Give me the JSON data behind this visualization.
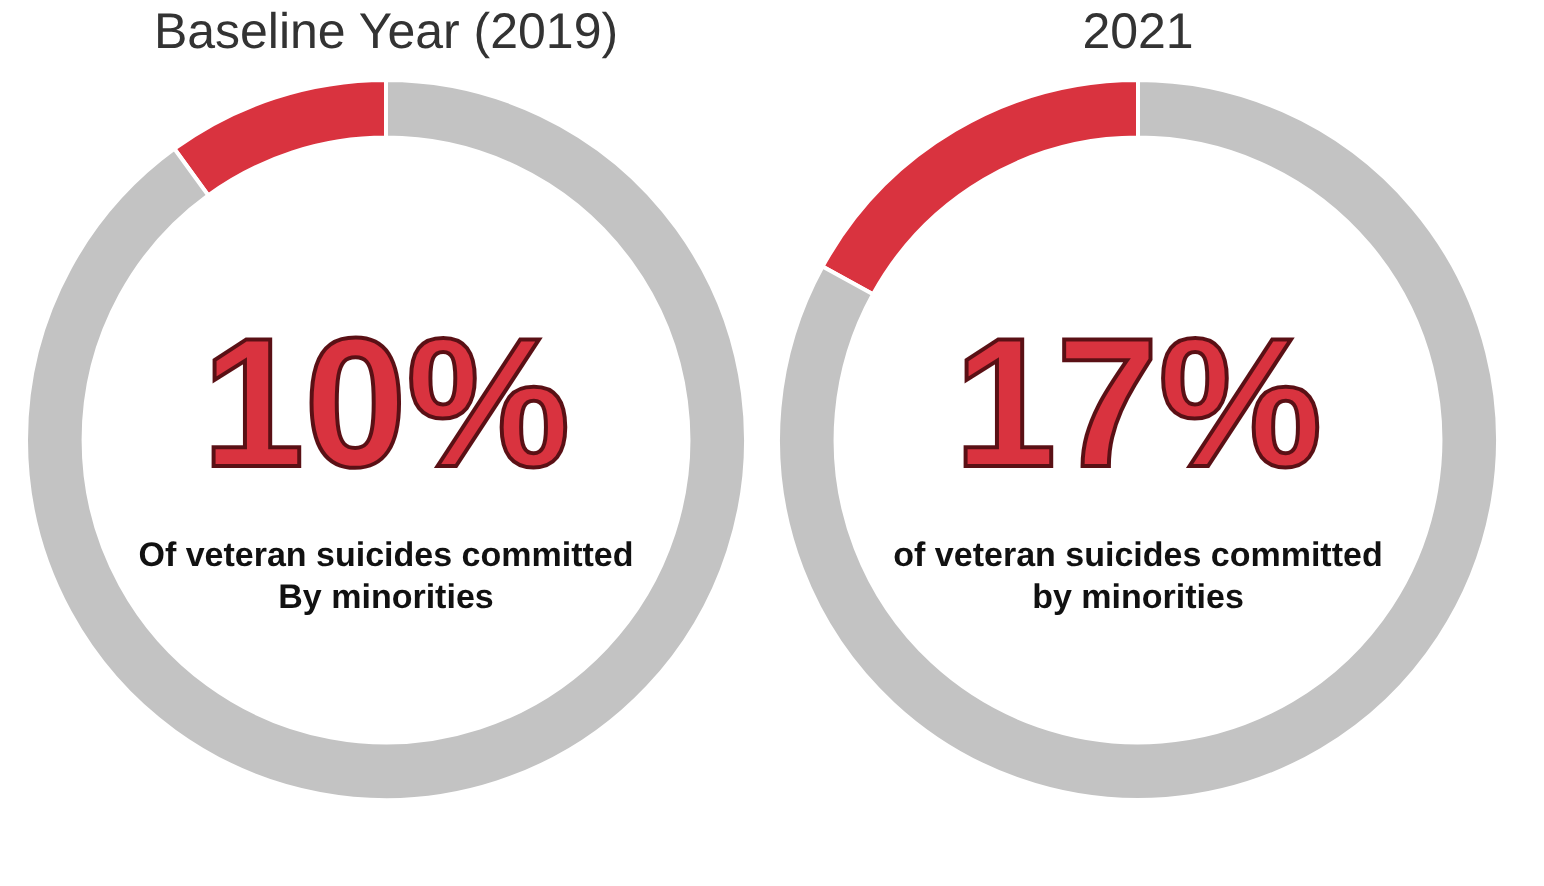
{
  "chart_data": [
    {
      "type": "donut",
      "title": "Baseline Year (2019)",
      "categories": [
        null,
        null
      ],
      "values": [
        10,
        90
      ],
      "colors": [
        "#d9333f",
        "#c3c3c3"
      ],
      "annotations": [
        "10%",
        "Of veteran suicides committed\nBy minorities"
      ]
    },
    {
      "type": "donut",
      "title": "2021",
      "categories": [
        null,
        null
      ],
      "values": [
        17,
        83
      ],
      "colors": [
        "#d9333f",
        "#c3c3c3"
      ],
      "annotations": [
        "17%",
        "of veteran suicides committed\nby minorities"
      ]
    }
  ]
}
